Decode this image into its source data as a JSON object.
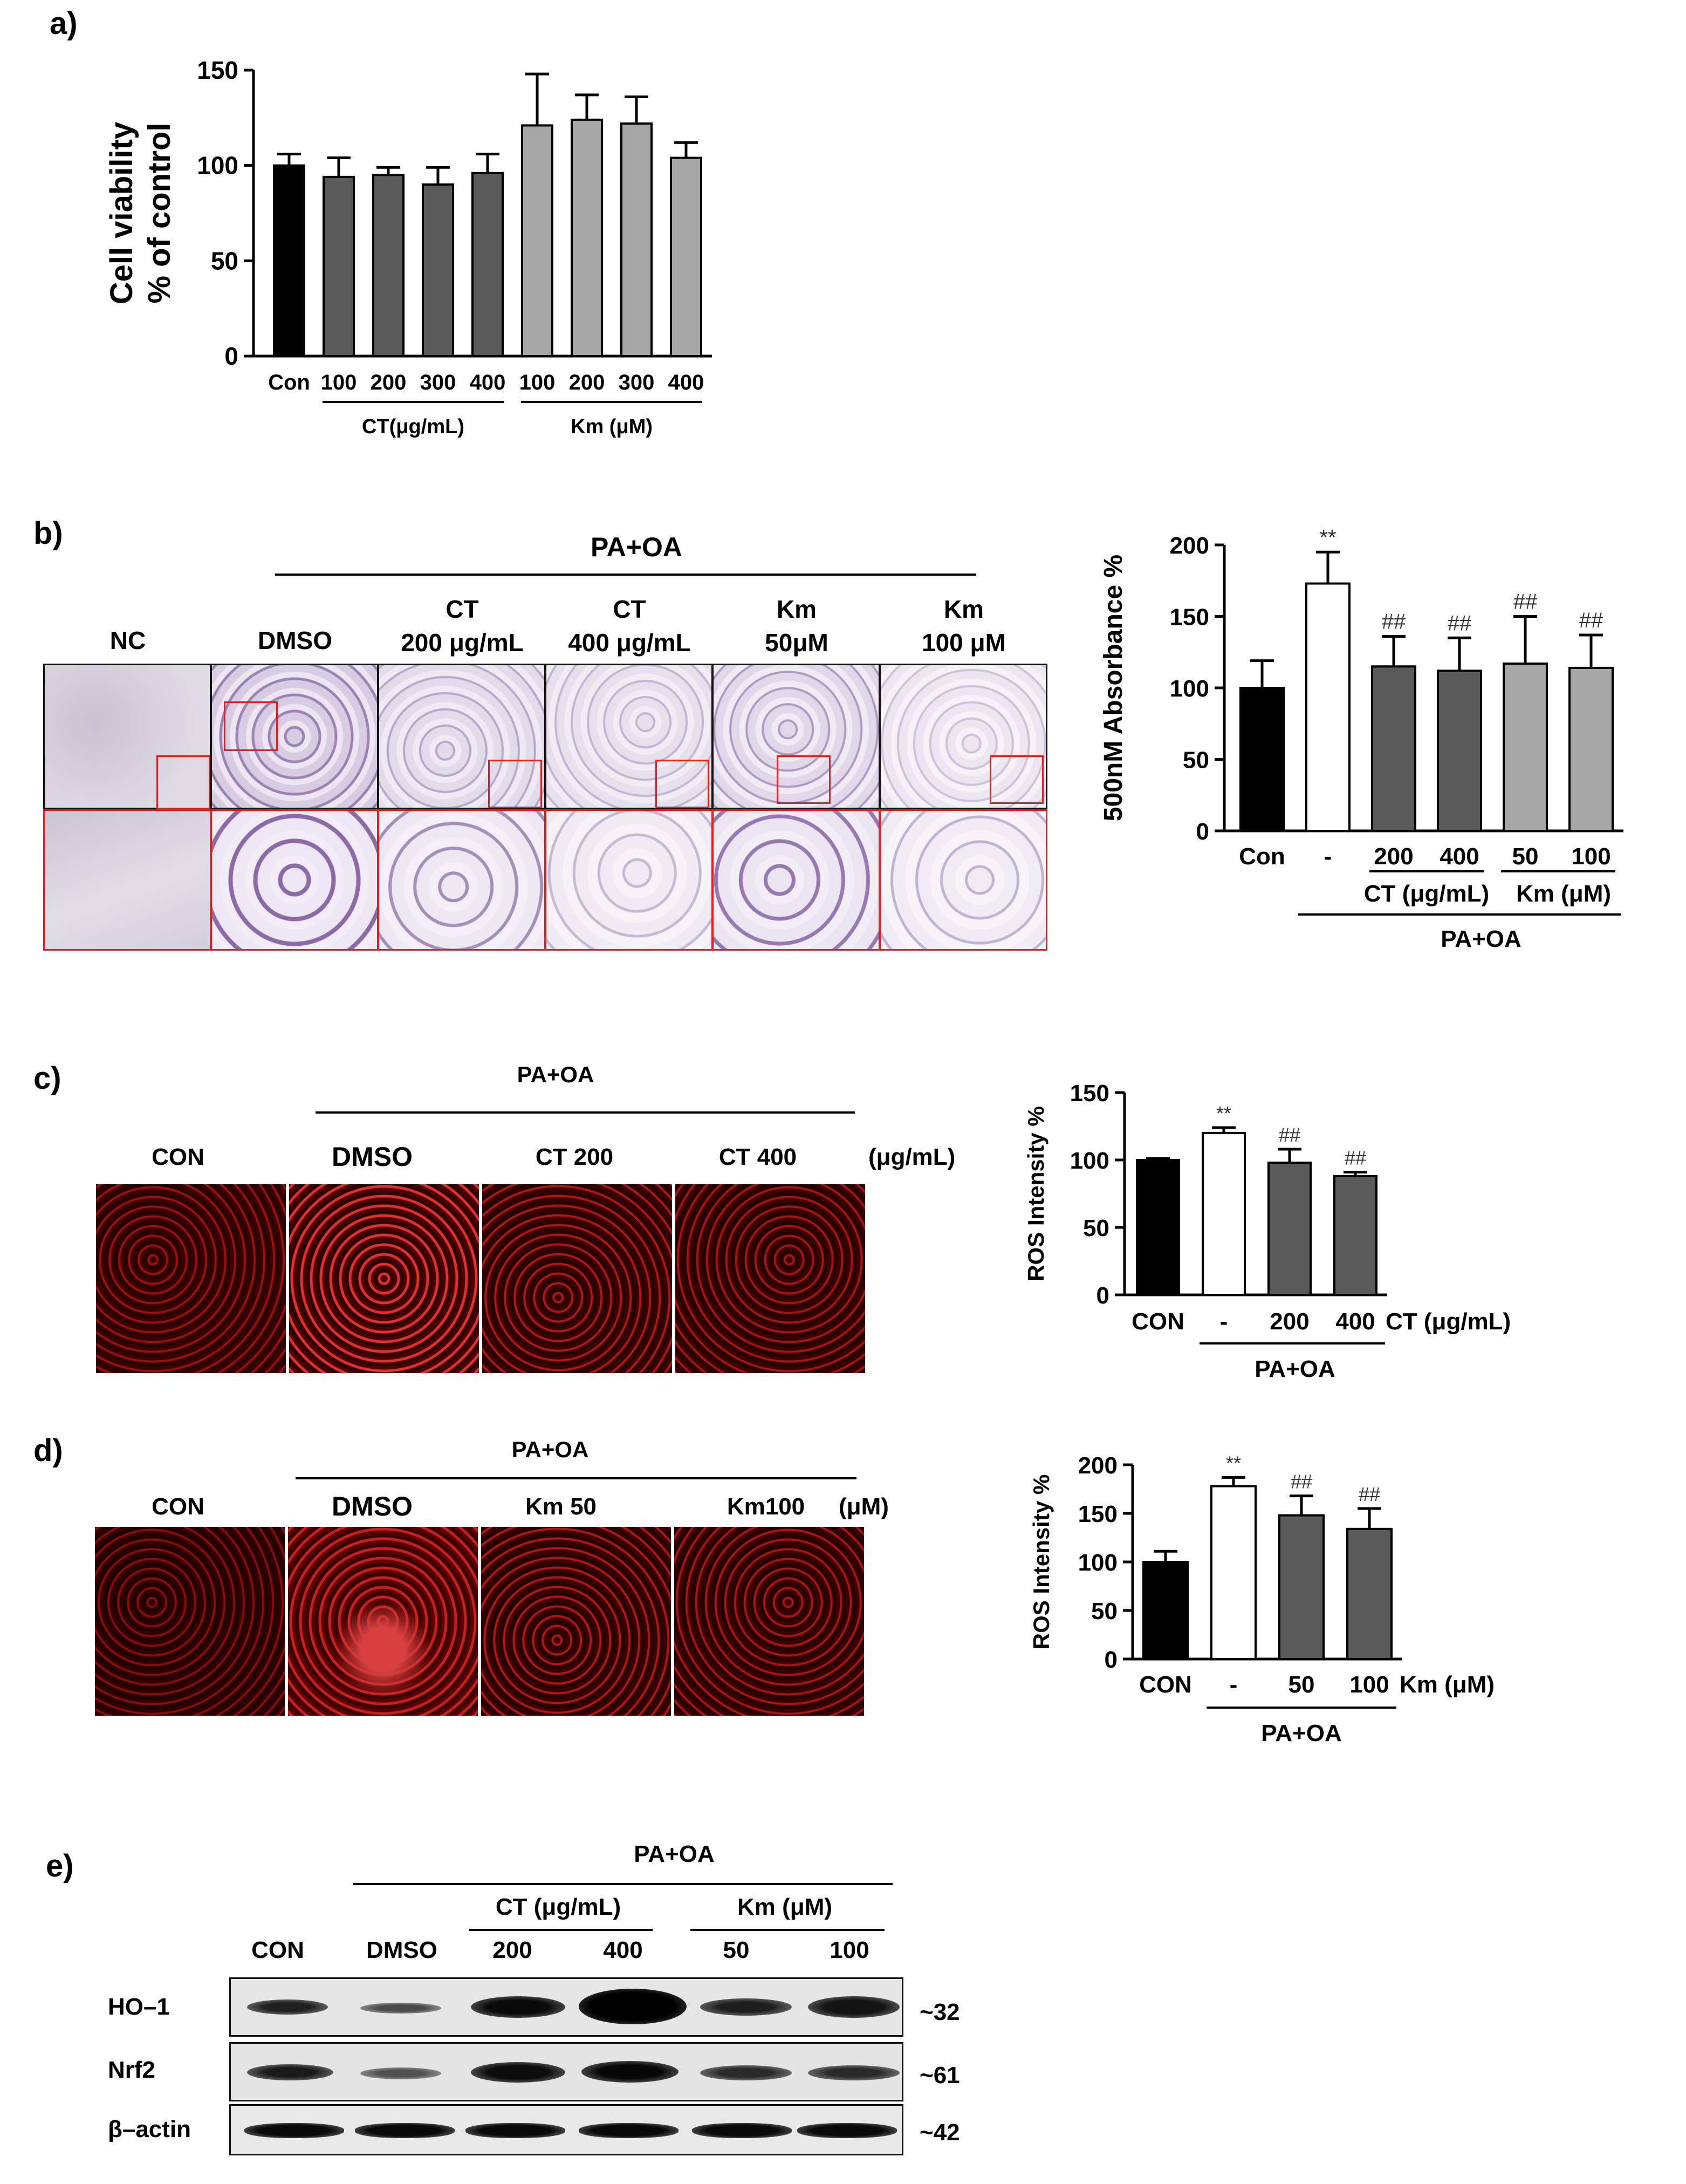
{
  "panels": {
    "a": "a)",
    "b": "b)",
    "c": "c)",
    "d": "d)",
    "e": "e)"
  },
  "charts": {
    "a": {
      "ylabel_line1": "Cell viability",
      "ylabel_line2": "% of control",
      "yticks": [
        "0",
        "50",
        "100",
        "150"
      ],
      "xticks": [
        "Con",
        "100",
        "200",
        "300",
        "400",
        "100",
        "200",
        "300",
        "400"
      ],
      "group1": "CT(μg/mL)",
      "group2": "Km (μM)"
    },
    "b": {
      "ylabel": "500nM Absorbance %",
      "yticks": [
        "0",
        "50",
        "100",
        "150",
        "200"
      ],
      "xticks": [
        "Con",
        "-",
        "200",
        "400",
        "50",
        "100"
      ],
      "group1": "CT (μg/mL)",
      "group2": "Km (μM)",
      "bottom": "PA+OA",
      "annotations": [
        "**",
        "##",
        "##",
        "##",
        "##"
      ]
    },
    "c": {
      "ylabel": "ROS Intensity %",
      "yticks": [
        "0",
        "50",
        "100",
        "150"
      ],
      "xticks": [
        "CON",
        "-",
        "200",
        "400"
      ],
      "unit": "CT (μg/mL)",
      "bottom": "PA+OA",
      "annotations": [
        "**",
        "##",
        "##"
      ]
    },
    "d": {
      "ylabel": "ROS Intensity %",
      "yticks": [
        "0",
        "50",
        "100",
        "150",
        "200"
      ],
      "xticks": [
        "CON",
        "-",
        "50",
        "100"
      ],
      "unit": "Km (μM)",
      "bottom": "PA+OA",
      "annotations": [
        "**",
        "##",
        "##"
      ]
    }
  },
  "images_b": {
    "header": "PA+OA",
    "cols": [
      {
        "line1": "NC",
        "line2": ""
      },
      {
        "line1": "DMSO",
        "line2": ""
      },
      {
        "line1": "CT",
        "line2": "200 μg/mL"
      },
      {
        "line1": "CT",
        "line2": "400 μg/mL"
      },
      {
        "line1": "Km",
        "line2": "50μM"
      },
      {
        "line1": "Km",
        "line2": "100 μM"
      }
    ]
  },
  "images_c": {
    "header": "PA+OA",
    "cols": [
      "CON",
      "DMSO",
      "CT 200",
      "CT 400"
    ],
    "unit": "(μg/mL)"
  },
  "images_d": {
    "header": "PA+OA",
    "cols": [
      "CON",
      "DMSO",
      "Km 50",
      "Km100"
    ],
    "unit": "(μM)"
  },
  "blot": {
    "header": "PA+OA",
    "group1": "CT (μg/mL)",
    "group2": "Km (μM)",
    "lanes": [
      "CON",
      "DMSO",
      "200",
      "400",
      "50",
      "100"
    ],
    "rows": [
      {
        "label": "HO–1",
        "size": "~32"
      },
      {
        "label": "Nrf2",
        "size": "~61"
      },
      {
        "label": "β–actin",
        "size": "~42"
      }
    ]
  },
  "colors": {
    "black": "#000000",
    "dark_gray": "#5a5a5a",
    "light_gray": "#a6a6a6",
    "white": "#ffffff",
    "red_frame": "#e02020"
  },
  "chart_data": [
    {
      "type": "bar",
      "panel": "a",
      "categories": [
        "Con",
        "CT 100",
        "CT 200",
        "CT 300",
        "CT 400",
        "Km 100",
        "Km 200",
        "Km 300",
        "Km 400"
      ],
      "values": [
        100,
        94,
        95,
        90,
        96,
        121,
        124,
        122,
        104
      ],
      "errors": [
        6,
        10,
        4,
        9,
        10,
        27,
        13,
        14,
        8
      ],
      "colors": [
        "#000000",
        "#5a5a5a",
        "#5a5a5a",
        "#5a5a5a",
        "#5a5a5a",
        "#a6a6a6",
        "#a6a6a6",
        "#a6a6a6",
        "#a6a6a6"
      ],
      "ylabel": "Cell viability % of control",
      "ylim": [
        0,
        150
      ]
    },
    {
      "type": "bar",
      "panel": "b",
      "categories": [
        "Con",
        "-",
        "CT 200",
        "CT 400",
        "Km 50",
        "Km 100"
      ],
      "values": [
        100,
        173,
        115,
        112,
        117,
        114
      ],
      "errors": [
        19,
        22,
        21,
        23,
        33,
        23
      ],
      "labels": [
        "",
        "**",
        "##",
        "##",
        "##",
        "##"
      ],
      "colors": [
        "#000000",
        "#ffffff",
        "#5a5a5a",
        "#5a5a5a",
        "#a6a6a6",
        "#a6a6a6"
      ],
      "ylabel": "500nM Absorbance %",
      "ylim": [
        0,
        200
      ]
    },
    {
      "type": "bar",
      "panel": "c",
      "categories": [
        "CON",
        "-",
        "200",
        "400"
      ],
      "values": [
        100,
        120,
        98,
        88
      ],
      "errors": [
        1,
        4,
        10,
        3
      ],
      "labels": [
        "",
        "**",
        "##",
        "##"
      ],
      "colors": [
        "#000000",
        "#ffffff",
        "#5a5a5a",
        "#5a5a5a"
      ],
      "ylabel": "ROS Intensity %",
      "ylim": [
        0,
        150
      ]
    },
    {
      "type": "bar",
      "panel": "d",
      "categories": [
        "CON",
        "-",
        "50",
        "100"
      ],
      "values": [
        100,
        178,
        148,
        134
      ],
      "errors": [
        11,
        9,
        20,
        21
      ],
      "labels": [
        "",
        "**",
        "##",
        "##"
      ],
      "colors": [
        "#000000",
        "#ffffff",
        "#5a5a5a",
        "#5a5a5a"
      ],
      "ylabel": "ROS Intensity %",
      "ylim": [
        0,
        200
      ]
    }
  ]
}
